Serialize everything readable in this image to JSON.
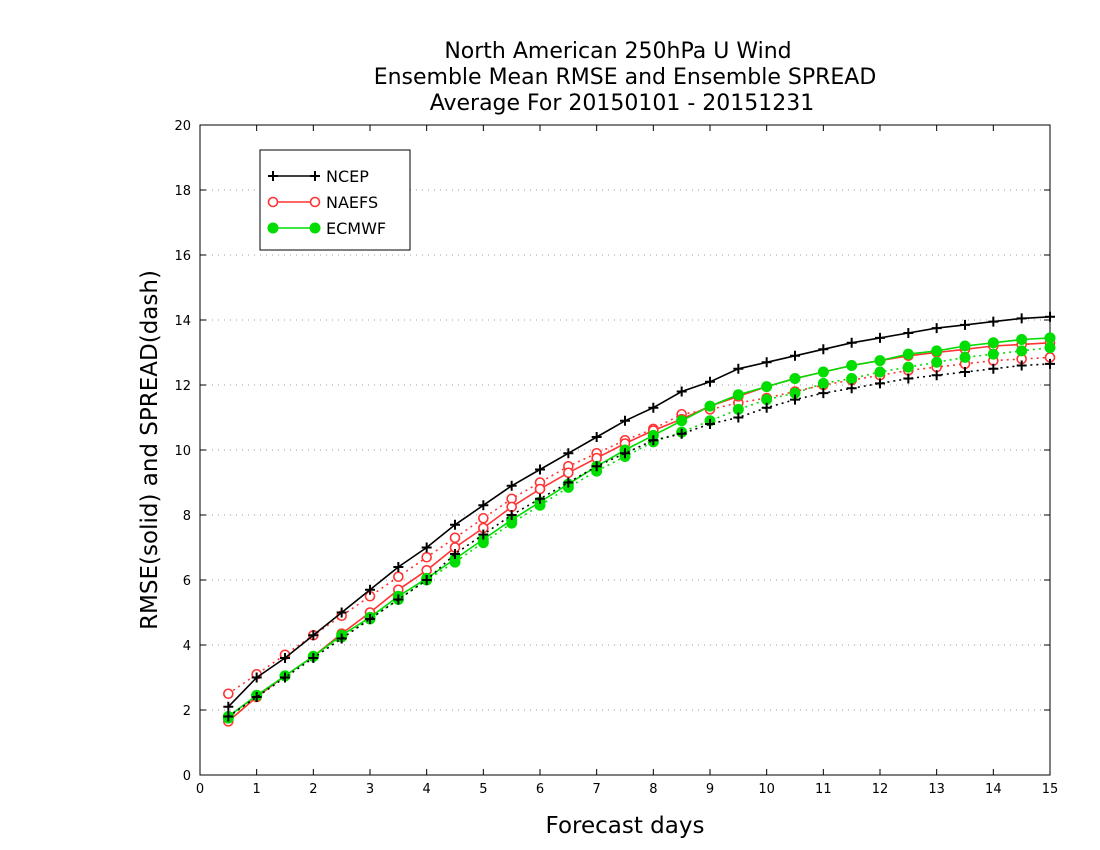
{
  "chart_data": {
    "type": "line",
    "title": [
      "North American 250hPa U Wind",
      "Ensemble Mean RMSE and Ensemble SPREAD",
      "Average For 20150101 - 20151231"
    ],
    "xlabel": "Forecast days",
    "ylabel": "RMSE(solid) and SPREAD(dash)",
    "xlim": [
      0,
      15
    ],
    "ylim": [
      0,
      20
    ],
    "xticks": [
      0,
      1,
      2,
      3,
      4,
      5,
      6,
      7,
      8,
      9,
      10,
      11,
      12,
      13,
      14,
      15
    ],
    "yticks": [
      0,
      2,
      4,
      6,
      8,
      10,
      12,
      14,
      16,
      18,
      20
    ],
    "grid": "horizontal dotted",
    "legend_position": "top-left",
    "x": [
      0.5,
      1,
      1.5,
      2,
      2.5,
      3,
      3.5,
      4,
      4.5,
      5,
      5.5,
      6,
      6.5,
      7,
      7.5,
      8,
      8.5,
      9,
      9.5,
      10,
      10.5,
      11,
      11.5,
      12,
      12.5,
      13,
      13.5,
      14,
      14.5,
      15
    ],
    "series": [
      {
        "name": "NCEP",
        "color": "#000000",
        "marker": "plus",
        "rmse": [
          2.1,
          3.0,
          3.6,
          4.3,
          5.0,
          5.7,
          6.4,
          7.0,
          7.7,
          8.3,
          8.9,
          9.4,
          9.9,
          10.4,
          10.9,
          11.3,
          11.8,
          12.1,
          12.5,
          12.7,
          12.9,
          13.1,
          13.3,
          13.45,
          13.6,
          13.75,
          13.85,
          13.95,
          14.05,
          14.1
        ],
        "spread": [
          1.8,
          2.4,
          3.0,
          3.6,
          4.2,
          4.8,
          5.4,
          6.0,
          6.8,
          7.4,
          8.0,
          8.5,
          9.0,
          9.5,
          9.9,
          10.3,
          10.5,
          10.8,
          11.0,
          11.3,
          11.55,
          11.75,
          11.9,
          12.05,
          12.2,
          12.3,
          12.4,
          12.5,
          12.6,
          12.65
        ]
      },
      {
        "name": "NAEFS",
        "color": "#ff3333",
        "marker": "circle-open",
        "rmse": [
          1.65,
          2.4,
          3.05,
          3.65,
          4.35,
          5.0,
          5.7,
          6.3,
          7.0,
          7.6,
          8.25,
          8.8,
          9.3,
          9.75,
          10.2,
          10.6,
          10.95,
          11.35,
          11.65,
          11.95,
          12.2,
          12.4,
          12.6,
          12.75,
          12.9,
          13.0,
          13.1,
          13.2,
          13.25,
          13.3
        ],
        "spread": [
          2.5,
          3.1,
          3.7,
          4.3,
          4.9,
          5.5,
          6.1,
          6.7,
          7.3,
          7.9,
          8.5,
          9.0,
          9.5,
          9.9,
          10.3,
          10.65,
          11.1,
          11.25,
          11.45,
          11.6,
          11.8,
          12.0,
          12.15,
          12.3,
          12.45,
          12.55,
          12.65,
          12.75,
          12.8,
          12.85
        ]
      },
      {
        "name": "ECMWF",
        "color": "#00dd00",
        "marker": "circle-filled",
        "rmse": [
          1.8,
          2.45,
          3.05,
          3.65,
          4.3,
          4.85,
          5.5,
          6.05,
          6.65,
          7.25,
          7.85,
          8.4,
          8.95,
          9.5,
          10.0,
          10.45,
          10.9,
          11.35,
          11.7,
          11.95,
          12.2,
          12.4,
          12.6,
          12.75,
          12.95,
          13.05,
          13.2,
          13.3,
          13.4,
          13.45
        ],
        "spread": [
          1.75,
          2.45,
          3.05,
          3.65,
          4.25,
          4.8,
          5.4,
          6.0,
          6.55,
          7.15,
          7.75,
          8.3,
          8.85,
          9.35,
          9.8,
          10.25,
          10.55,
          10.9,
          11.25,
          11.55,
          11.75,
          12.05,
          12.2,
          12.4,
          12.55,
          12.7,
          12.85,
          12.95,
          13.05,
          13.15
        ]
      }
    ]
  }
}
